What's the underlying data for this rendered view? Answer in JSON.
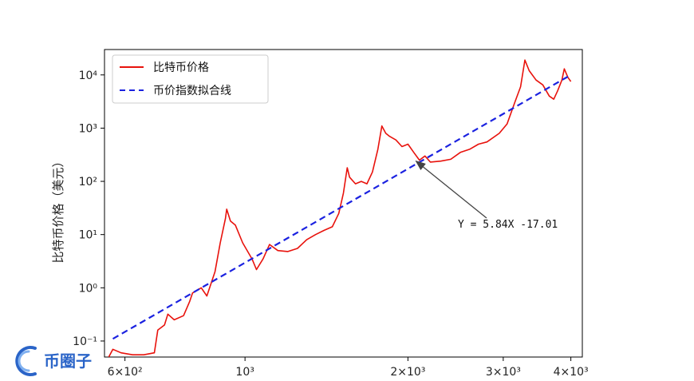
{
  "chart_data": {
    "type": "line",
    "xscale": "log",
    "yscale": "log",
    "xlim": [
      550,
      4200
    ],
    "ylim": [
      0.05,
      30000
    ],
    "ylabel": "比特币价格（美元）",
    "grid": false,
    "legend_position": "top-left",
    "x_ticks": [
      {
        "value": 600,
        "label": "6×10²"
      },
      {
        "value": 1000,
        "label": "10³"
      },
      {
        "value": 2000,
        "label": "2×10³"
      },
      {
        "value": 3000,
        "label": "3×10³"
      },
      {
        "value": 4000,
        "label": "4×10³"
      }
    ],
    "y_ticks": [
      {
        "value": 0.1,
        "label": "10⁻¹"
      },
      {
        "value": 1,
        "label": "10⁰"
      },
      {
        "value": 10,
        "label": "10¹"
      },
      {
        "value": 100,
        "label": "10²"
      },
      {
        "value": 1000,
        "label": "10³"
      },
      {
        "value": 10000,
        "label": "10⁴"
      }
    ],
    "series": [
      {
        "name": "比特币价格",
        "color": "#e8120c",
        "style": "solid",
        "points": [
          [
            560,
            0.05
          ],
          [
            570,
            0.07
          ],
          [
            590,
            0.06
          ],
          [
            620,
            0.055
          ],
          [
            650,
            0.055
          ],
          [
            680,
            0.06
          ],
          [
            690,
            0.16
          ],
          [
            710,
            0.2
          ],
          [
            720,
            0.32
          ],
          [
            740,
            0.25
          ],
          [
            770,
            0.3
          ],
          [
            790,
            0.55
          ],
          [
            800,
            0.8
          ],
          [
            830,
            1.0
          ],
          [
            850,
            0.7
          ],
          [
            880,
            2.0
          ],
          [
            900,
            7.0
          ],
          [
            920,
            20.0
          ],
          [
            925,
            30.0
          ],
          [
            940,
            18.0
          ],
          [
            960,
            15.0
          ],
          [
            990,
            7.0
          ],
          [
            1030,
            3.5
          ],
          [
            1050,
            2.2
          ],
          [
            1080,
            3.5
          ],
          [
            1110,
            6.5
          ],
          [
            1150,
            5.0
          ],
          [
            1200,
            4.8
          ],
          [
            1250,
            5.5
          ],
          [
            1300,
            8.0
          ],
          [
            1350,
            10.0
          ],
          [
            1400,
            12.0
          ],
          [
            1450,
            14.0
          ],
          [
            1490,
            25.0
          ],
          [
            1520,
            60.0
          ],
          [
            1545,
            180.0
          ],
          [
            1560,
            120.0
          ],
          [
            1600,
            90.0
          ],
          [
            1640,
            100.0
          ],
          [
            1680,
            90.0
          ],
          [
            1720,
            150.0
          ],
          [
            1760,
            400.0
          ],
          [
            1790,
            1100.0
          ],
          [
            1820,
            800.0
          ],
          [
            1850,
            700.0
          ],
          [
            1900,
            600.0
          ],
          [
            1950,
            450.0
          ],
          [
            2000,
            500.0
          ],
          [
            2050,
            350.0
          ],
          [
            2100,
            250.0
          ],
          [
            2150,
            300.0
          ],
          [
            2200,
            230.0
          ],
          [
            2300,
            240.0
          ],
          [
            2400,
            260.0
          ],
          [
            2500,
            350.0
          ],
          [
            2600,
            400.0
          ],
          [
            2700,
            500.0
          ],
          [
            2800,
            550.0
          ],
          [
            2950,
            800.0
          ],
          [
            3050,
            1200.0
          ],
          [
            3150,
            3000.0
          ],
          [
            3230,
            6000.0
          ],
          [
            3290,
            19000.0
          ],
          [
            3350,
            12000.0
          ],
          [
            3450,
            8000.0
          ],
          [
            3550,
            6500.0
          ],
          [
            3650,
            4000.0
          ],
          [
            3720,
            3500.0
          ],
          [
            3780,
            5000.0
          ],
          [
            3850,
            8000.0
          ],
          [
            3890,
            13000.0
          ],
          [
            3950,
            9000.0
          ],
          [
            4000,
            7500.0
          ]
        ]
      },
      {
        "name": "币价指数拟合线",
        "color": "#1b22e0",
        "style": "dashed",
        "points": [
          [
            570,
            0.11
          ],
          [
            4000,
            10000
          ]
        ]
      }
    ],
    "annotation": {
      "text": "Y = 5.84X -17.01",
      "arrow_to": [
        2070,
        240
      ]
    }
  },
  "watermark": {
    "text": "币圈子",
    "color": "#2a64c8"
  }
}
